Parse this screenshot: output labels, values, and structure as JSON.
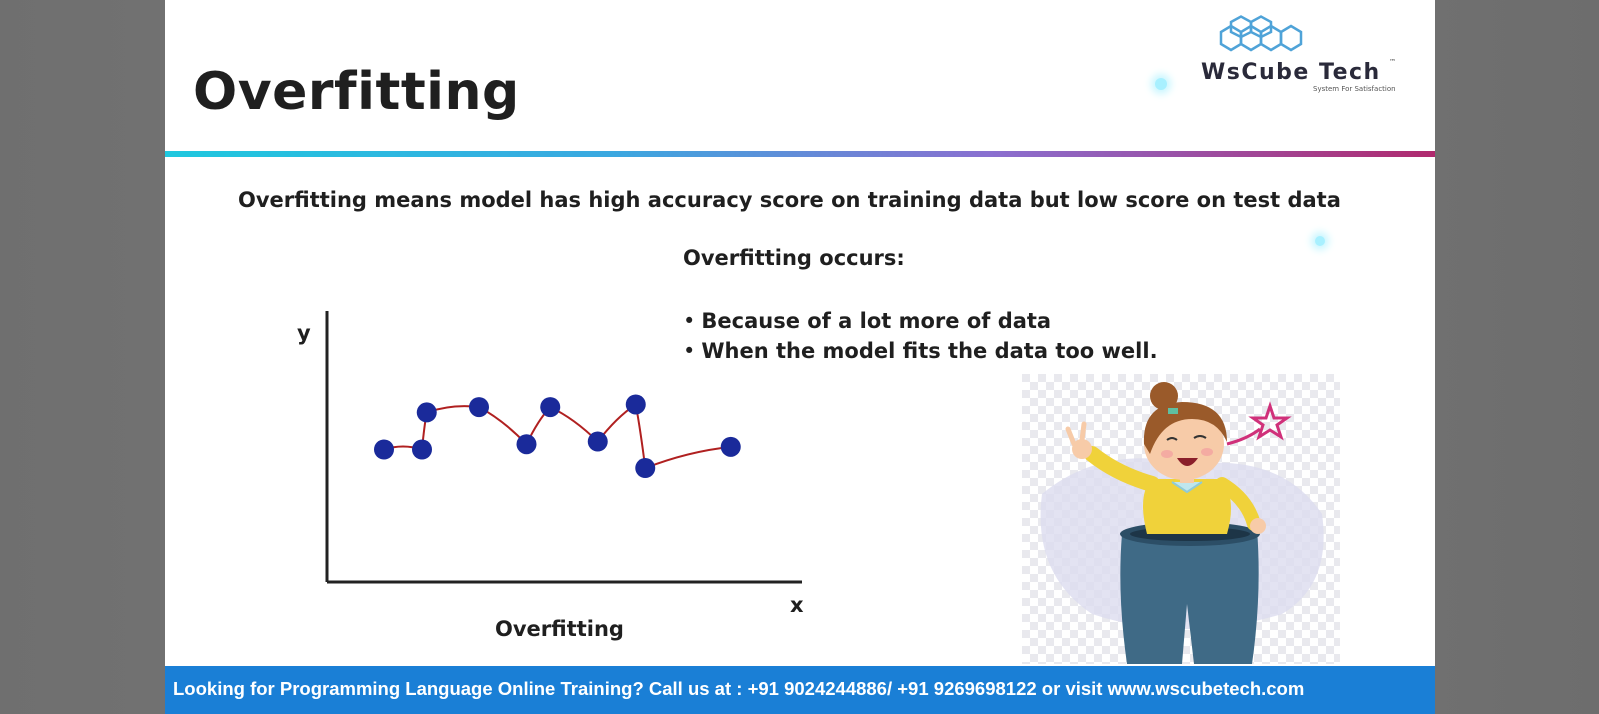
{
  "slide": {
    "title": "Overfitting",
    "definition": "Overfitting means model has high accuracy score on training data but low score on test data",
    "occurs_heading": "Overfitting occurs:",
    "reasons": [
      "Because of a lot more of data",
      "When the model fits the data too well."
    ]
  },
  "logo": {
    "name": "WsCube Tech",
    "tagline": "System For Satisfaction",
    "tm": "™",
    "hex_color": "#4fa3d8"
  },
  "chart_data": {
    "type": "line",
    "caption": "Overfitting",
    "xlabel": "x",
    "ylabel": "y",
    "xlim": [
      0,
      10
    ],
    "ylim": [
      0,
      10
    ],
    "points": [
      {
        "x": 1.2,
        "y": 5.0
      },
      {
        "x": 2.0,
        "y": 5.0
      },
      {
        "x": 2.1,
        "y": 6.4
      },
      {
        "x": 3.2,
        "y": 6.6
      },
      {
        "x": 4.2,
        "y": 5.2
      },
      {
        "x": 4.7,
        "y": 6.6
      },
      {
        "x": 5.7,
        "y": 5.3
      },
      {
        "x": 6.5,
        "y": 6.7
      },
      {
        "x": 6.7,
        "y": 4.3
      },
      {
        "x": 8.5,
        "y": 5.1
      }
    ],
    "point_color": "#1a2a9a",
    "line_color": "#b02020"
  },
  "footer": {
    "text": "Looking for Programming Language Online Training? Call us at : +91 9024244886/ +91 9269698122 or visit www.wscubetech.com",
    "color": "#1a7fd6"
  },
  "icons": [
    "logo-hexagon-icon",
    "girl-loose-pants-illustration"
  ]
}
